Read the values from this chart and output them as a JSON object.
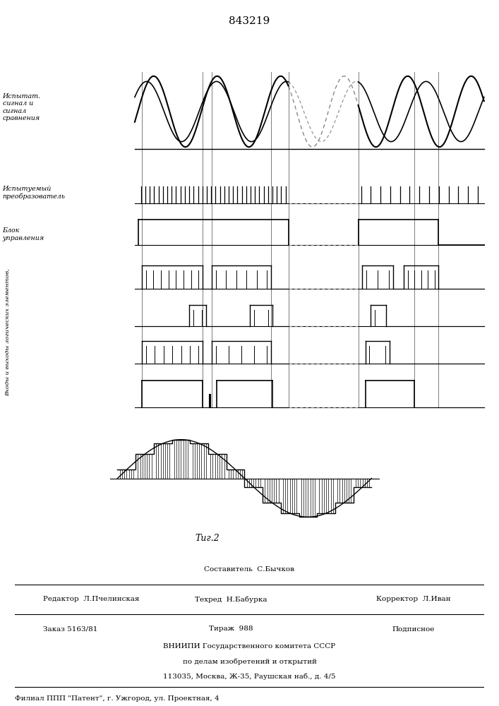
{
  "title": "843219",
  "fig_caption": "Τиг.2",
  "background_color": "#ffffff",
  "line_color": "#000000",
  "dashed_color": "#888888",
  "label_ispytat": "Испытат.\nсигнал и\nсигнал\nсравнения",
  "label_ispytuemy": "Испытуемый\nпреобразователь",
  "label_blok": "Блок\nуправления",
  "label_vhody": "Входы и выходы логических элементов,‬‬‬"
}
